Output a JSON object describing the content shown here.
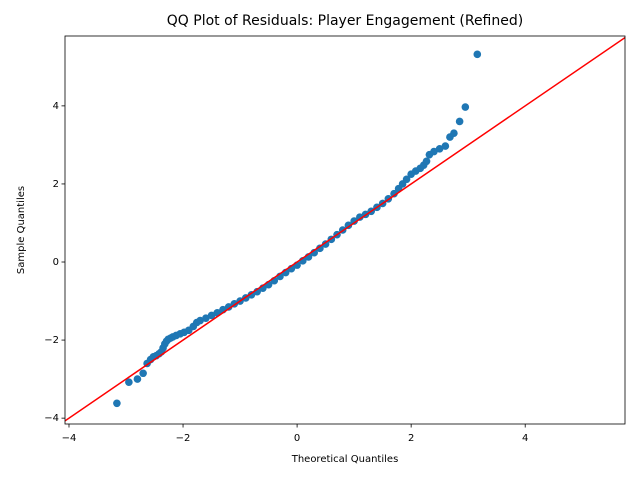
{
  "chart_data": {
    "type": "scatter",
    "title": "QQ Plot of Residuals: Player Engagement (Refined)",
    "x_label": "Theoretical Quantiles",
    "y_label": "Sample Quantiles",
    "color": "#1f77b4",
    "x": [
      -3.16,
      -2.95,
      -2.8,
      -2.7,
      -2.63,
      -2.57,
      -2.52,
      -2.47,
      -2.42,
      -2.38,
      -2.35,
      -2.32,
      -2.29,
      -2.26,
      -2.22,
      -2.18,
      -2.12,
      -2.05,
      -1.98,
      -1.9,
      -1.82,
      -1.76,
      -1.7,
      -1.6,
      -1.5,
      -1.4,
      -1.3,
      -1.2,
      -1.1,
      -1.0,
      -0.9,
      -0.8,
      -0.7,
      -0.6,
      -0.5,
      -0.4,
      -0.3,
      -0.2,
      -0.1,
      0.0,
      0.1,
      0.2,
      0.3,
      0.4,
      0.5,
      0.6,
      0.7,
      0.8,
      0.9,
      1.0,
      1.1,
      1.2,
      1.3,
      1.4,
      1.5,
      1.6,
      1.7,
      1.78,
      1.85,
      1.92,
      2.0,
      2.08,
      2.16,
      2.22,
      2.27,
      2.32,
      2.4,
      2.5,
      2.6,
      2.68,
      2.75,
      2.85,
      2.95,
      3.16
    ],
    "values": [
      -3.62,
      -3.08,
      -3.0,
      -2.85,
      -2.6,
      -2.5,
      -2.43,
      -2.4,
      -2.35,
      -2.3,
      -2.2,
      -2.1,
      -2.03,
      -1.98,
      -1.95,
      -1.92,
      -1.88,
      -1.84,
      -1.8,
      -1.75,
      -1.65,
      -1.55,
      -1.5,
      -1.44,
      -1.37,
      -1.3,
      -1.22,
      -1.15,
      -1.07,
      -1.0,
      -0.92,
      -0.84,
      -0.76,
      -0.67,
      -0.58,
      -0.48,
      -0.37,
      -0.27,
      -0.17,
      -0.08,
      0.03,
      0.13,
      0.24,
      0.35,
      0.46,
      0.58,
      0.7,
      0.82,
      0.94,
      1.05,
      1.15,
      1.22,
      1.3,
      1.4,
      1.5,
      1.62,
      1.75,
      1.88,
      2.0,
      2.12,
      2.25,
      2.33,
      2.4,
      2.48,
      2.58,
      2.75,
      2.83,
      2.9,
      2.97,
      3.2,
      3.3,
      3.6,
      3.97,
      5.32
    ],
    "line": {
      "color": "#ff0000",
      "x": [
        -4.07,
        5.75
      ],
      "values": [
        -4.07,
        5.75
      ]
    },
    "xlim": [
      -4.07,
      5.75
    ],
    "ylim": [
      -4.15,
      5.79
    ],
    "xticks": [
      {
        "value": -4,
        "label": "−4"
      },
      {
        "value": -2,
        "label": "−2"
      },
      0,
      2,
      4
    ],
    "yticks": [
      {
        "value": -4,
        "label": "−4"
      },
      {
        "value": -2,
        "label": "−2"
      },
      0,
      2,
      4
    ]
  }
}
